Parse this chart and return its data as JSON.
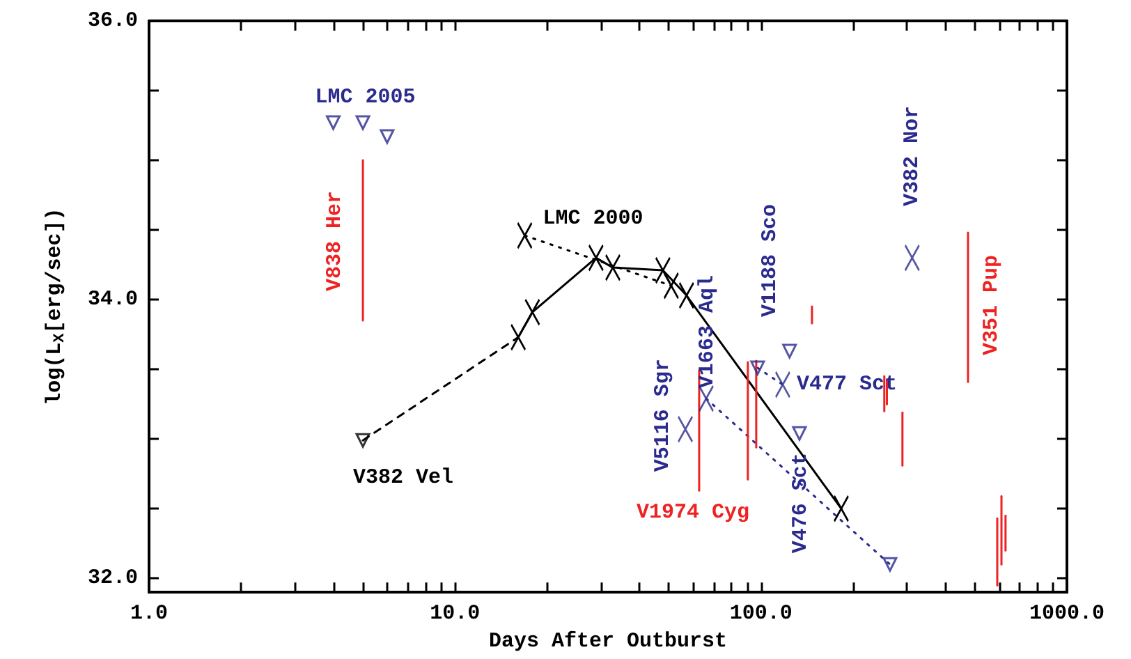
{
  "chart_data": {
    "type": "line",
    "xlabel": "Days After Outburst",
    "ylabel": "log(L$_{X}$[erg/sec])",
    "log": "x",
    "xlim": [
      1,
      1000
    ],
    "ylim": [
      31.9,
      36.0
    ],
    "xticks": [
      {
        "value": 1,
        "label": "1.0"
      },
      {
        "value": 2,
        "label": null
      },
      {
        "value": 3,
        "label": null
      },
      {
        "value": 4,
        "label": null
      },
      {
        "value": 5,
        "label": null
      },
      {
        "value": 6,
        "label": null
      },
      {
        "value": 7,
        "label": null
      },
      {
        "value": 8,
        "label": null
      },
      {
        "value": 9,
        "label": null
      },
      {
        "value": 10,
        "label": "10.0"
      },
      {
        "value": 20,
        "label": null
      },
      {
        "value": 30,
        "label": null
      },
      {
        "value": 40,
        "label": null
      },
      {
        "value": 50,
        "label": null
      },
      {
        "value": 60,
        "label": null
      },
      {
        "value": 70,
        "label": null
      },
      {
        "value": 80,
        "label": null
      },
      {
        "value": 90,
        "label": null
      },
      {
        "value": 100,
        "label": "100.0"
      },
      {
        "value": 200,
        "label": null
      },
      {
        "value": 300,
        "label": null
      },
      {
        "value": 400,
        "label": null
      },
      {
        "value": 500,
        "label": null
      },
      {
        "value": 600,
        "label": null
      },
      {
        "value": 700,
        "label": null
      },
      {
        "value": 800,
        "label": null
      },
      {
        "value": 900,
        "label": null
      },
      {
        "value": 1000,
        "label": "1000.0"
      }
    ],
    "yticks": [
      {
        "value": 32,
        "label": "32.0"
      },
      {
        "value": 32.5,
        "label": null
      },
      {
        "value": 33,
        "label": null
      },
      {
        "value": 33.5,
        "label": null
      },
      {
        "value": 34,
        "label": "34.0"
      },
      {
        "value": 34.5,
        "label": null
      },
      {
        "value": 35,
        "label": null
      },
      {
        "value": 35.5,
        "label": null
      },
      {
        "value": 36,
        "label": "36.0"
      }
    ],
    "series": [
      {
        "name": "LMC 2005",
        "type": "scatter",
        "marker": "triangle",
        "color": "#2b2b8f",
        "x": [
          4,
          5,
          6
        ],
        "values": [
          35.27,
          35.27,
          35.17
        ]
      },
      {
        "name": "V838 Her",
        "line_style": "solid",
        "color": "#ee2222",
        "x": [
          5,
          5
        ],
        "values": [
          35.0,
          33.85
        ]
      },
      {
        "name": "LMC 2000",
        "marker": "cross",
        "line_style": "dotted",
        "color": "#000000",
        "x": [
          16.9,
          50.9
        ],
        "values": [
          34.46,
          34.1
        ]
      },
      {
        "line_style": "dashed",
        "color": "#000000",
        "x": [
          5,
          16.1
        ],
        "values": [
          32.99,
          33.73
        ]
      },
      {
        "name": "V382 Vel",
        "type": "scatter",
        "marker": "triangle",
        "color": "#000000",
        "x": [
          5
        ],
        "values": [
          32.99
        ]
      },
      {
        "marker": "cross",
        "line_style": "solid",
        "color": "#000000",
        "x": [
          16.1,
          17.9,
          28.9,
          32.8,
          47.8,
          57.1,
          183
        ],
        "values": [
          33.73,
          33.91,
          34.3,
          34.23,
          34.21,
          34.03,
          32.5
        ]
      },
      {
        "line_style": "dotted",
        "color": "#2b2b8f",
        "x": [
          66.2,
          264
        ],
        "values": [
          33.29,
          32.1
        ]
      },
      {
        "name": "V1663 Aql",
        "type": "scatter",
        "marker": "cross",
        "color": "#2b2b8f",
        "x": [
          66.2
        ],
        "values": [
          33.29
        ]
      },
      {
        "type": "scatter",
        "marker": "triangle",
        "color": "#2b2b8f",
        "x": [
          264
        ],
        "values": [
          32.1
        ]
      },
      {
        "name": "V5116 Sgr",
        "type": "scatter",
        "marker": "cross",
        "color": "#2b2b8f",
        "x": [
          56.6
        ],
        "values": [
          33.07
        ]
      },
      {
        "name": "V1188 Sco",
        "type": "scatter",
        "marker": "triangle",
        "color": "#2b2b8f",
        "x": [
          124
        ],
        "values": [
          33.63
        ]
      },
      {
        "line_style": "dotted",
        "color": "#2b2b8f",
        "x": [
          97.5,
          117.8
        ],
        "values": [
          33.51,
          33.39
        ]
      },
      {
        "type": "scatter",
        "marker": "triangle",
        "color": "#2b2b8f",
        "x": [
          97.5
        ],
        "values": [
          33.51
        ]
      },
      {
        "name": "V477 Sct",
        "type": "scatter",
        "marker": "cross",
        "color": "#2b2b8f",
        "x": [
          117.8
        ],
        "values": [
          33.39
        ]
      },
      {
        "name": "V476 Sct",
        "type": "scatter",
        "marker": "triangle",
        "color": "#2b2b8f",
        "x": [
          133.6
        ],
        "values": [
          33.04
        ]
      },
      {
        "name": "V382 Nor",
        "type": "scatter",
        "marker": "cross",
        "color": "#2b2b8f",
        "x": [
          312
        ],
        "values": [
          34.3
        ]
      },
      {
        "name": "V1974 Cyg",
        "line_style": "solid",
        "color": "#ee2222",
        "x": [
          62.8,
          62.8
        ],
        "values": [
          33.49,
          32.63
        ]
      },
      {
        "line_style": "solid",
        "color": "#ee2222",
        "x": [
          90.6,
          90.6
        ],
        "values": [
          33.55,
          32.71
        ]
      },
      {
        "line_style": "solid",
        "color": "#ee2222",
        "x": [
          96.5,
          96.5
        ],
        "values": [
          33.56,
          32.94
        ]
      },
      {
        "name": "V351 Pup",
        "line_style": "solid",
        "color": "#ee2222",
        "x": [
          475,
          475
        ],
        "values": [
          34.48,
          33.41
        ]
      },
      {
        "line_style": "solid",
        "color": "#ee2222",
        "x": [
          146.8,
          146.8
        ],
        "values": [
          33.95,
          33.83
        ]
      },
      {
        "line_style": "solid",
        "color": "#ee2222",
        "x": [
          253,
          253
        ],
        "values": [
          33.45,
          33.2
        ]
      },
      {
        "line_style": "solid",
        "color": "#ee2222",
        "x": [
          258,
          258
        ],
        "values": [
          33.42,
          33.25
        ]
      },
      {
        "line_style": "solid",
        "color": "#ee2222",
        "x": [
          290,
          290
        ],
        "values": [
          33.19,
          32.81
        ]
      },
      {
        "line_style": "solid",
        "color": "#ee2222",
        "x": [
          592,
          592
        ],
        "values": [
          32.43,
          31.95
        ]
      },
      {
        "line_style": "solid",
        "color": "#ee2222",
        "x": [
          611,
          611
        ],
        "values": [
          32.59,
          32.1
        ]
      },
      {
        "line_style": "solid",
        "color": "#ee2222",
        "x": [
          630,
          630
        ],
        "values": [
          32.45,
          32.2
        ]
      }
    ]
  }
}
